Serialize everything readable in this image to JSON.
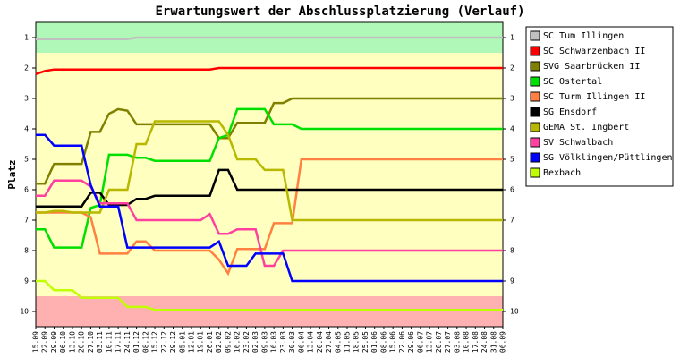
{
  "chart_data": {
    "type": "line",
    "title": "Erwartungswert der Abschlussplatzierung (Verlauf)",
    "y_label": "Platz",
    "categories": [
      "15.09",
      "22.09",
      "29.09",
      "06.10",
      "13.10",
      "20.10",
      "27.10",
      "03.11",
      "10.11",
      "17.11",
      "24.11",
      "01.12",
      "08.12",
      "15.12",
      "22.12",
      "29.12",
      "05.01",
      "12.01",
      "19.01",
      "26.01",
      "02.02",
      "09.02",
      "16.02",
      "23.02",
      "02.03",
      "09.03",
      "16.03",
      "23.03",
      "30.03",
      "06.04",
      "13.04",
      "20.04",
      "27.04",
      "04.05",
      "11.05",
      "18.05",
      "25.05",
      "01.06",
      "08.06",
      "15.06",
      "22.06",
      "29.06",
      "06.07",
      "13.07",
      "20.07",
      "27.07",
      "03.08",
      "10.08",
      "17.08",
      "24.08",
      "31.08",
      "06.09"
    ],
    "ylim": [
      10.5,
      0.5
    ],
    "yticks": [
      1,
      2,
      3,
      4,
      5,
      6,
      7,
      8,
      9,
      10
    ],
    "legend": "right",
    "series": [
      {
        "name": "SC Tum Illingen",
        "color": "#c0c0c0",
        "values": [
          1.05,
          1.05,
          1.05,
          1.05,
          1.05,
          1.05,
          1.05,
          1.05,
          1.05,
          1.05,
          1.05,
          1,
          1,
          1,
          1,
          1,
          1,
          1,
          1,
          1,
          1,
          1,
          1,
          1,
          1,
          1,
          1,
          1,
          1,
          1,
          1,
          1,
          1,
          1,
          1,
          1,
          1,
          1,
          1,
          1,
          1,
          1,
          1,
          1,
          1,
          1,
          1,
          1,
          1,
          1,
          1,
          1
        ]
      },
      {
        "name": "SC Schwarzenbach II",
        "color": "#ff0000",
        "values": [
          2.2,
          2.1,
          2.05,
          2.05,
          2.05,
          2.05,
          2.05,
          2.05,
          2.05,
          2.05,
          2.05,
          2.05,
          2.05,
          2.05,
          2.05,
          2.05,
          2.05,
          2.05,
          2.05,
          2.05,
          2,
          2,
          2,
          2,
          2,
          2,
          2,
          2,
          2,
          2,
          2,
          2,
          2,
          2,
          2,
          2,
          2,
          2,
          2,
          2,
          2,
          2,
          2,
          2,
          2,
          2,
          2,
          2,
          2,
          2,
          2,
          2
        ]
      },
      {
        "name": "SVG Saarbrücken II",
        "color": "#808000",
        "values": [
          5.8,
          5.8,
          5.15,
          5.15,
          5.15,
          5.15,
          4.1,
          4.1,
          3.5,
          3.35,
          3.4,
          3.85,
          3.85,
          3.85,
          3.85,
          3.85,
          3.85,
          3.85,
          3.85,
          3.85,
          4.3,
          4.3,
          3.8,
          3.8,
          3.8,
          3.8,
          3.15,
          3.15,
          3,
          3,
          3,
          3,
          3,
          3,
          3,
          3,
          3,
          3,
          3,
          3,
          3,
          3,
          3,
          3,
          3,
          3,
          3,
          3,
          3,
          3,
          3,
          3
        ]
      },
      {
        "name": "SC Ostertal",
        "color": "#00e000",
        "values": [
          7.3,
          7.3,
          7.9,
          7.9,
          7.9,
          7.9,
          6.6,
          6.5,
          4.85,
          4.85,
          4.85,
          4.95,
          4.95,
          5.05,
          5.05,
          5.05,
          5.05,
          5.05,
          5.05,
          5.05,
          4.3,
          4.2,
          3.35,
          3.35,
          3.35,
          3.35,
          3.85,
          3.85,
          3.85,
          4,
          4,
          4,
          4,
          4,
          4,
          4,
          4,
          4,
          4,
          4,
          4,
          4,
          4,
          4,
          4,
          4,
          4,
          4,
          4,
          4,
          4,
          4
        ]
      },
      {
        "name": "SC Turm Illingen II",
        "color": "#ff8040",
        "values": [
          6.75,
          6.75,
          6.75,
          6.75,
          6.75,
          6.75,
          6.9,
          8.1,
          8.1,
          8.1,
          8.1,
          7.7,
          7.7,
          8,
          8,
          8,
          8,
          8,
          8,
          8,
          8.3,
          8.75,
          7.95,
          7.95,
          7.95,
          7.95,
          7.1,
          7.1,
          7.1,
          5,
          5,
          5,
          5,
          5,
          5,
          5,
          5,
          5,
          5,
          5,
          5,
          5,
          5,
          5,
          5,
          5,
          5,
          5,
          5,
          5,
          5,
          5
        ]
      },
      {
        "name": "SG Ensdorf",
        "color": "#000000",
        "values": [
          6.55,
          6.55,
          6.55,
          6.55,
          6.55,
          6.55,
          6.1,
          6.1,
          6.5,
          6.5,
          6.5,
          6.3,
          6.3,
          6.2,
          6.2,
          6.2,
          6.2,
          6.2,
          6.2,
          6.2,
          5.35,
          5.35,
          6,
          6,
          6,
          6,
          6,
          6,
          6,
          6,
          6,
          6,
          6,
          6,
          6,
          6,
          6,
          6,
          6,
          6,
          6,
          6,
          6,
          6,
          6,
          6,
          6,
          6,
          6,
          6,
          6,
          6
        ]
      },
      {
        "name": "GEMA St. Ingbert",
        "color": "#b8b800",
        "values": [
          6.75,
          6.75,
          6.7,
          6.7,
          6.75,
          6.75,
          6.75,
          6.75,
          6,
          6,
          6,
          4.5,
          4.5,
          3.75,
          3.75,
          3.75,
          3.75,
          3.75,
          3.75,
          3.75,
          3.75,
          4.2,
          5,
          5,
          5,
          5.35,
          5.35,
          5.35,
          7,
          7,
          7,
          7,
          7,
          7,
          7,
          7,
          7,
          7,
          7,
          7,
          7,
          7,
          7,
          7,
          7,
          7,
          7,
          7,
          7,
          7,
          7,
          7
        ]
      },
      {
        "name": "SV Schwalbach",
        "color": "#ff40a0",
        "values": [
          6.2,
          6.2,
          5.7,
          5.7,
          5.7,
          5.7,
          5.9,
          6.45,
          6.45,
          6.45,
          6.45,
          7,
          7,
          7,
          7,
          7,
          7,
          7,
          7,
          6.8,
          7.45,
          7.45,
          7.3,
          7.3,
          7.3,
          8.5,
          8.5,
          8,
          8,
          8,
          8,
          8,
          8,
          8,
          8,
          8,
          8,
          8,
          8,
          8,
          8,
          8,
          8,
          8,
          8,
          8,
          8,
          8,
          8,
          8,
          8,
          8
        ]
      },
      {
        "name": "SG Völklingen/Püttlingen",
        "color": "#0000ff",
        "values": [
          4.2,
          4.2,
          4.55,
          4.55,
          4.55,
          4.55,
          5.85,
          6.55,
          6.55,
          6.55,
          7.9,
          7.9,
          7.9,
          7.9,
          7.9,
          7.9,
          7.9,
          7.9,
          7.9,
          7.9,
          7.7,
          8.5,
          8.5,
          8.5,
          8.1,
          8.1,
          8.1,
          8.1,
          9,
          9,
          9,
          9,
          9,
          9,
          9,
          9,
          9,
          9,
          9,
          9,
          9,
          9,
          9,
          9,
          9,
          9,
          9,
          9,
          9,
          9,
          9,
          9
        ]
      },
      {
        "name": "Bexbach",
        "color": "#c0ff00",
        "values": [
          9,
          9,
          9.3,
          9.3,
          9.3,
          9.55,
          9.55,
          9.55,
          9.55,
          9.55,
          9.85,
          9.85,
          9.85,
          9.95,
          9.95,
          9.95,
          9.95,
          9.95,
          9.95,
          9.95,
          9.95,
          9.95,
          9.95,
          9.95,
          9.95,
          9.95,
          9.95,
          9.95,
          9.95,
          9.95,
          9.95,
          9.95,
          9.95,
          9.95,
          9.95,
          9.95,
          9.95,
          9.95,
          9.95,
          9.95,
          9.95,
          9.95,
          9.95,
          9.95,
          9.95,
          9.95,
          9.95,
          9.95,
          9.95,
          9.95,
          9.95,
          9.95
        ]
      }
    ]
  }
}
